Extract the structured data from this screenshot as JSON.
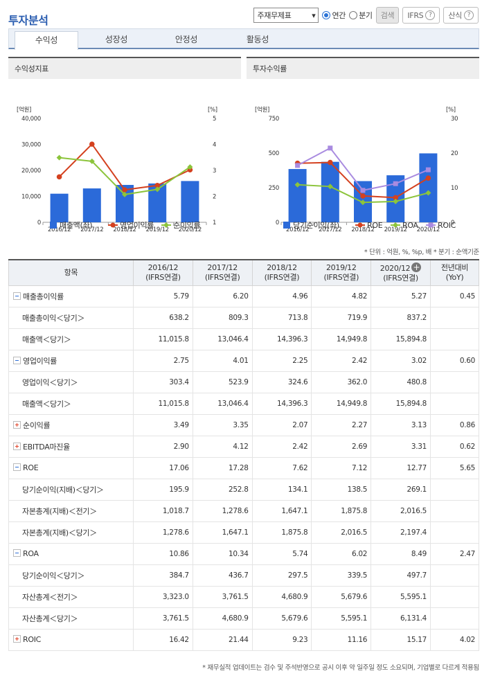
{
  "header": {
    "title": "투자분석",
    "select": "주재무제표",
    "radio_annual": "연간",
    "radio_quarter": "분기",
    "search": "검색",
    "ifrs": "IFRS",
    "calc": "산식",
    "help": "?"
  },
  "tabs": [
    "수익성",
    "성장성",
    "안정성",
    "활동성"
  ],
  "left_panel": {
    "title": "수익성지표"
  },
  "right_panel": {
    "title": "투자수익률"
  },
  "chart_data": [
    {
      "type": "bar",
      "categories": [
        "2016/12",
        "2017/12",
        "2018/12",
        "2019/12",
        "2020/12"
      ],
      "y_left_unit": "[억원]",
      "y_right_unit": "[%]",
      "y_left_ticks": [
        "40,000",
        "30,000",
        "20,000",
        "10,000",
        "0"
      ],
      "y_right_ticks": [
        "5",
        "4",
        "3",
        "2",
        "1"
      ],
      "ylim_left": [
        0,
        40000
      ],
      "ylim_right": [
        1,
        5
      ],
      "series": [
        {
          "name": "매출액(좌)",
          "kind": "bar",
          "axis": "left",
          "color": "#2b6ad9",
          "values": [
            11015.8,
            13046.4,
            14396.3,
            14949.8,
            15894.8
          ]
        },
        {
          "name": "영업이익률",
          "kind": "line",
          "axis": "right",
          "color": "#d4411f",
          "values": [
            2.75,
            4.01,
            2.25,
            2.42,
            3.02
          ]
        },
        {
          "name": "순이익률",
          "kind": "line",
          "axis": "right",
          "color": "#8cc43b",
          "values": [
            3.49,
            3.35,
            2.07,
            2.27,
            3.13
          ]
        }
      ]
    },
    {
      "type": "bar",
      "categories": [
        "2016/12",
        "2017/12",
        "2018/12",
        "2019/12",
        "2020/12"
      ],
      "y_left_unit": "[억원]",
      "y_right_unit": "[%]",
      "y_left_ticks": [
        "750",
        "500",
        "250",
        "0"
      ],
      "y_right_ticks": [
        "30",
        "20",
        "10",
        "0"
      ],
      "ylim_left": [
        0,
        750
      ],
      "ylim_right": [
        0,
        30
      ],
      "series": [
        {
          "name": "당기순이익(좌)",
          "kind": "bar",
          "axis": "left",
          "color": "#2b6ad9",
          "values": [
            384.7,
            436.7,
            297.5,
            339.5,
            497.7
          ]
        },
        {
          "name": "ROE",
          "kind": "line",
          "axis": "right",
          "color": "#d4411f",
          "values": [
            17.06,
            17.28,
            7.62,
            7.12,
            12.77
          ]
        },
        {
          "name": "ROA",
          "kind": "line",
          "axis": "right",
          "color": "#8cc43b",
          "values": [
            10.86,
            10.34,
            5.74,
            6.02,
            8.49
          ]
        },
        {
          "name": "ROIC",
          "kind": "line",
          "axis": "right",
          "color": "#a98be0",
          "values": [
            16.42,
            21.44,
            9.23,
            11.16,
            15.17
          ]
        }
      ]
    }
  ],
  "unit_note": "* 단위 : 억원, %, %p, 배   * 분기 : 순액기준",
  "table": {
    "headers": [
      {
        "a": "항목",
        "b": ""
      },
      {
        "a": "2016/12",
        "b": "(IFRS연결)"
      },
      {
        "a": "2017/12",
        "b": "(IFRS연결)"
      },
      {
        "a": "2018/12",
        "b": "(IFRS연결)"
      },
      {
        "a": "2019/12",
        "b": "(IFRS연결)"
      },
      {
        "a": "2020/12",
        "b": "(IFRS연결)"
      },
      {
        "a": "전년대비",
        "b": "(YoY)"
      }
    ],
    "rows": [
      {
        "label": "매출총이익률",
        "icon": "minus",
        "vals": [
          "5.79",
          "6.20",
          "4.96",
          "4.82",
          "5.27",
          "0.45"
        ]
      },
      {
        "label": "매출총이익＜당기＞",
        "sub": true,
        "vals": [
          "638.2",
          "809.3",
          "713.8",
          "719.9",
          "837.2",
          ""
        ]
      },
      {
        "label": "매출액＜당기＞",
        "sub": true,
        "vals": [
          "11,015.8",
          "13,046.4",
          "14,396.3",
          "14,949.8",
          "15,894.8",
          ""
        ]
      },
      {
        "label": "영업이익률",
        "icon": "minus",
        "vals": [
          "2.75",
          "4.01",
          "2.25",
          "2.42",
          "3.02",
          "0.60"
        ]
      },
      {
        "label": "영업이익＜당기＞",
        "sub": true,
        "vals": [
          "303.4",
          "523.9",
          "324.6",
          "362.0",
          "480.8",
          ""
        ]
      },
      {
        "label": "매출액＜당기＞",
        "sub": true,
        "vals": [
          "11,015.8",
          "13,046.4",
          "14,396.3",
          "14,949.8",
          "15,894.8",
          ""
        ]
      },
      {
        "label": "순이익률",
        "icon": "plus",
        "vals": [
          "3.49",
          "3.35",
          "2.07",
          "2.27",
          "3.13",
          "0.86"
        ]
      },
      {
        "label": "EBITDA마진율",
        "icon": "plus",
        "vals": [
          "2.90",
          "4.12",
          "2.42",
          "2.69",
          "3.31",
          "0.62"
        ]
      },
      {
        "label": "ROE",
        "icon": "minus",
        "vals": [
          "17.06",
          "17.28",
          "7.62",
          "7.12",
          "12.77",
          "5.65"
        ]
      },
      {
        "label": "당기순이익(지배)＜당기＞",
        "sub": true,
        "vals": [
          "195.9",
          "252.8",
          "134.1",
          "138.5",
          "269.1",
          ""
        ]
      },
      {
        "label": "자본총계(지배)＜전기＞",
        "sub": true,
        "vals": [
          "1,018.7",
          "1,278.6",
          "1,647.1",
          "1,875.8",
          "2,016.5",
          ""
        ]
      },
      {
        "label": "자본총계(지배)＜당기＞",
        "sub": true,
        "vals": [
          "1,278.6",
          "1,647.1",
          "1,875.8",
          "2,016.5",
          "2,197.4",
          ""
        ]
      },
      {
        "label": "ROA",
        "icon": "minus",
        "vals": [
          "10.86",
          "10.34",
          "5.74",
          "6.02",
          "8.49",
          "2.47"
        ]
      },
      {
        "label": "당기순이익＜당기＞",
        "sub": true,
        "vals": [
          "384.7",
          "436.7",
          "297.5",
          "339.5",
          "497.7",
          ""
        ]
      },
      {
        "label": "자산총계＜전기＞",
        "sub": true,
        "vals": [
          "3,323.0",
          "3,761.5",
          "4,680.9",
          "5,679.6",
          "5,595.1",
          ""
        ]
      },
      {
        "label": "자산총계＜당기＞",
        "sub": true,
        "vals": [
          "3,761.5",
          "4,680.9",
          "5,679.6",
          "5,595.1",
          "6,131.4",
          ""
        ]
      },
      {
        "label": "ROIC",
        "icon": "plus",
        "vals": [
          "16.42",
          "21.44",
          "9.23",
          "11.16",
          "15.17",
          "4.02"
        ]
      }
    ]
  },
  "footer": "* 재무실적 업데이트는 검수 및 주석반영으로 공시 이후 약 일주일 정도 소요되며, 기업별로 다르게 적용됨"
}
